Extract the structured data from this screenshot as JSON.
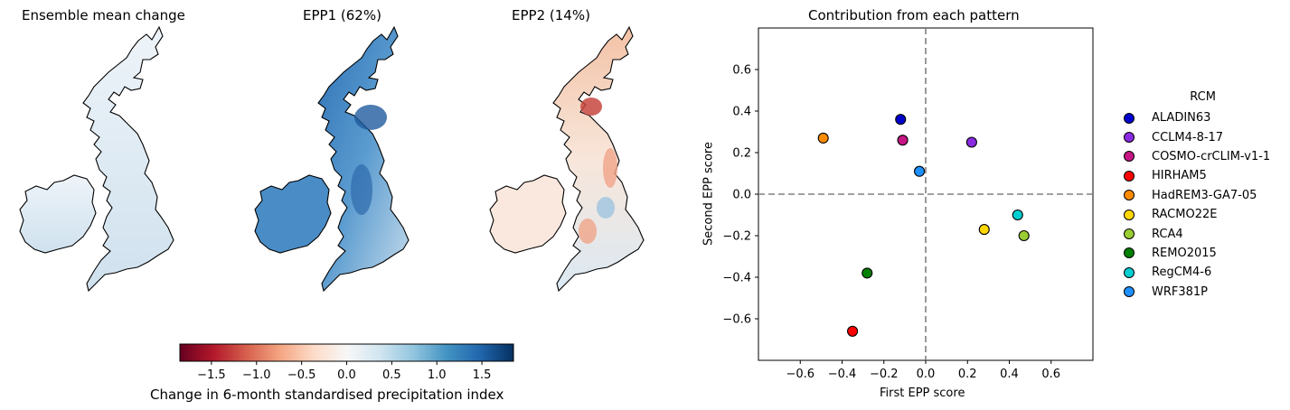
{
  "maps": [
    {
      "title": "Ensemble mean change",
      "pattern": "mean"
    },
    {
      "title": "EPP1 (62%)",
      "pattern": "epp1"
    },
    {
      "title": "EPP2 (14%)",
      "pattern": "epp2"
    }
  ],
  "colorbar": {
    "label": "Change in 6-month standardised precipitation index",
    "range": [
      -1.85,
      1.85
    ],
    "ticks": [
      "−1.5",
      "−1.0",
      "−0.5",
      "0.0",
      "0.5",
      "1.0",
      "1.5"
    ],
    "tick_values": [
      -1.5,
      -1.0,
      -0.5,
      0.0,
      0.5,
      1.0,
      1.5
    ],
    "colormap": "RdBu"
  },
  "chart_data": {
    "type": "scatter",
    "title": "Contribution from each pattern",
    "xlabel": "First EPP score",
    "ylabel": "Second EPP score",
    "xlim": [
      -0.8,
      0.8
    ],
    "ylim": [
      -0.8,
      0.8
    ],
    "xticks": [
      -0.6,
      -0.4,
      -0.2,
      0.0,
      0.2,
      0.4,
      0.6
    ],
    "yticks": [
      -0.6,
      -0.4,
      -0.2,
      0.0,
      0.2,
      0.4,
      0.6
    ],
    "xtick_labels": [
      "−0.6",
      "−0.4",
      "−0.2",
      "0.0",
      "0.2",
      "0.4",
      "0.6"
    ],
    "ytick_labels": [
      "−0.6",
      "−0.4",
      "−0.2",
      "0.0",
      "0.2",
      "0.4",
      "0.6"
    ],
    "grid": false,
    "reference_lines": [
      {
        "axis": "x",
        "value": 0
      },
      {
        "axis": "y",
        "value": 0
      }
    ],
    "legend_title": "RCM",
    "legend_position": "right",
    "points": [
      {
        "name": "ALADIN63",
        "x": -0.12,
        "y": 0.36,
        "color": "#0000cd"
      },
      {
        "name": "CCLM4-8-17",
        "x": 0.22,
        "y": 0.25,
        "color": "#8a2be2"
      },
      {
        "name": "COSMO-crCLIM-v1-1",
        "x": -0.11,
        "y": 0.26,
        "color": "#c71585"
      },
      {
        "name": "HIRHAM5",
        "x": -0.35,
        "y": -0.66,
        "color": "#ff0000"
      },
      {
        "name": "HadREM3-GA7-05",
        "x": -0.49,
        "y": 0.27,
        "color": "#ff8c00"
      },
      {
        "name": "RACMO22E",
        "x": 0.28,
        "y": -0.17,
        "color": "#ffd700"
      },
      {
        "name": "RCA4",
        "x": 0.47,
        "y": -0.2,
        "color": "#9acd32"
      },
      {
        "name": "REMO2015",
        "x": -0.28,
        "y": -0.38,
        "color": "#008000"
      },
      {
        "name": "RegCM4-6",
        "x": 0.44,
        "y": -0.1,
        "color": "#00ced1"
      },
      {
        "name": "WRF381P",
        "x": -0.03,
        "y": 0.11,
        "color": "#1e90ff"
      }
    ]
  }
}
